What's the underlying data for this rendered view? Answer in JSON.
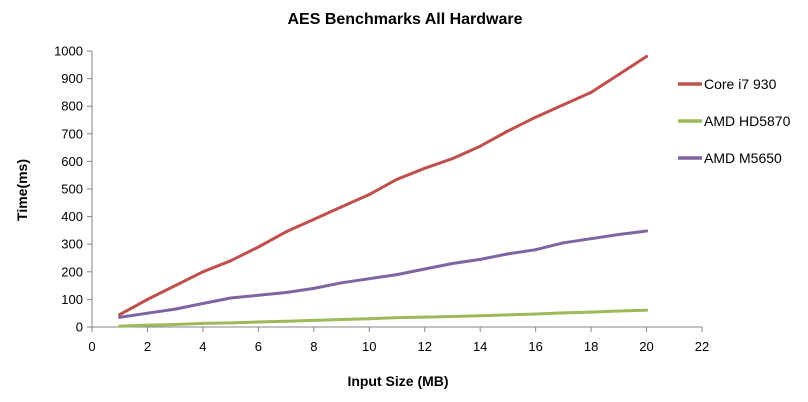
{
  "chart_data": {
    "type": "line",
    "title": "AES Benchmarks All Hardware",
    "xlabel": "Input Size (MB)",
    "ylabel": "Time(ms)",
    "xlim": [
      0,
      22
    ],
    "ylim": [
      0,
      1000
    ],
    "x_ticks": [
      0,
      2,
      4,
      6,
      8,
      10,
      12,
      14,
      16,
      18,
      20,
      22
    ],
    "y_ticks": [
      0,
      100,
      200,
      300,
      400,
      500,
      600,
      700,
      800,
      900,
      1000
    ],
    "grid": "none",
    "legend_position": "right",
    "x": [
      1,
      2,
      3,
      4,
      5,
      6,
      7,
      8,
      9,
      10,
      11,
      12,
      13,
      14,
      15,
      16,
      17,
      18,
      19,
      20
    ],
    "series": [
      {
        "name": "Core i7 930",
        "color": "#c0504d",
        "values": [
          45,
          100,
          150,
          200,
          240,
          290,
          345,
          390,
          435,
          480,
          535,
          575,
          610,
          655,
          710,
          760,
          805,
          850,
          915,
          980
        ]
      },
      {
        "name": "AMD HD5870",
        "color": "#9bbb59",
        "values": [
          3,
          7,
          9,
          13,
          15,
          18,
          21,
          24,
          27,
          30,
          34,
          36,
          38,
          41,
          44,
          47,
          51,
          54,
          58,
          61
        ]
      },
      {
        "name": "AMD M5650",
        "color": "#8064a2",
        "values": [
          35,
          50,
          65,
          85,
          105,
          115,
          125,
          140,
          160,
          175,
          190,
          210,
          230,
          245,
          265,
          280,
          305,
          320,
          335,
          348
        ]
      }
    ]
  }
}
